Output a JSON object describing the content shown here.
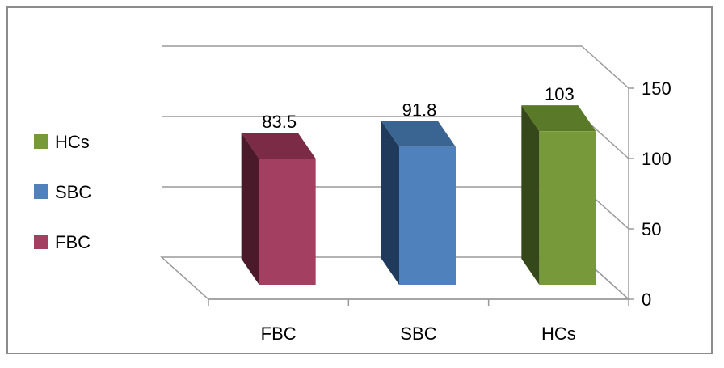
{
  "chart_data": {
    "type": "bar",
    "style": "3d-column",
    "categories": [
      "FBC",
      "SBC",
      "HCs"
    ],
    "values": [
      83.5,
      91.8,
      103
    ],
    "data_labels": [
      "83.5",
      "91.8",
      "103"
    ],
    "ylim": [
      0,
      150
    ],
    "yticks": [
      "0",
      "50",
      "100",
      "150"
    ],
    "y_axis_side": "right",
    "grid": true,
    "legend": {
      "placement": "left",
      "entries": [
        "HCs",
        "SBC",
        "FBC"
      ]
    },
    "colors": {
      "FBC": "#A33F60",
      "SBC": "#4F81BD",
      "HCs": "#77993A",
      "FBC_top": "#7B2B45",
      "SBC_top": "#3A6492",
      "HCs_top": "#5A7A2A",
      "FBC_side": "#4A1A2B",
      "SBC_side": "#1F3A5A",
      "HCs_side": "#34481A"
    }
  }
}
